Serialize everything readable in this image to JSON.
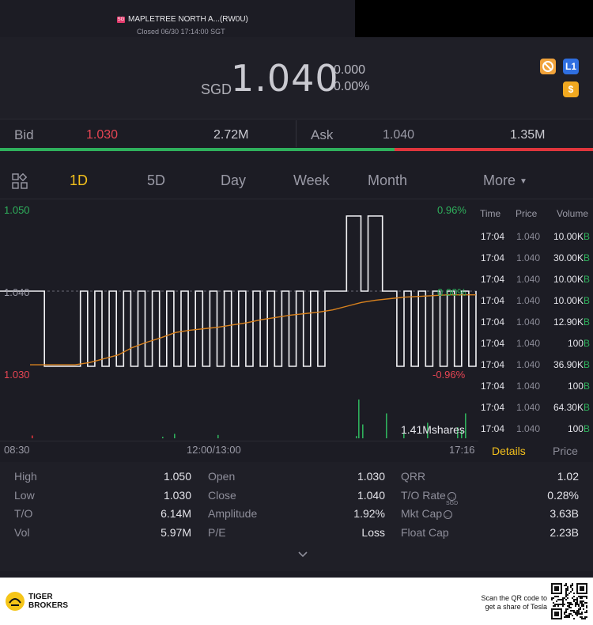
{
  "header": {
    "stock_name": "MAPLETREE NORTH A...(RW0U)",
    "status": "Closed 06/30 17:14:00 SGT"
  },
  "quote": {
    "currency": "SGD",
    "price": "1.040",
    "change": "0.000",
    "change_pct": "0.00%",
    "icons": [
      "no-short-icon",
      "level1-icon",
      "dollar-icon"
    ],
    "icon_level1": "L1",
    "icon_dollar": "$"
  },
  "bidask": {
    "bid_label": "Bid",
    "bid_price": "1.030",
    "bid_size": "2.72M",
    "ask_label": "Ask",
    "ask_price": "1.040",
    "ask_size": "1.35M",
    "bid_share": 0.665
  },
  "tabs": {
    "items": [
      "1D",
      "5D",
      "Day",
      "Week",
      "Month",
      "More"
    ],
    "active": "1D"
  },
  "chart": {
    "y_high": "1.050",
    "y_mid": "1.040",
    "y_low": "1.030",
    "pct_high": "0.96%",
    "pct_mid": "0.00%",
    "pct_low": "-0.96%",
    "volume_label": "1.41Mshares",
    "time_start": "08:30",
    "time_mid": "12:00/13:00",
    "time_end": "17:16"
  },
  "chart_data": {
    "type": "line",
    "title": "",
    "xlabel": "",
    "ylabel": "",
    "ylim": [
      1.03,
      1.05
    ],
    "x_ticks": [
      "08:30",
      "12:00/13:00",
      "17:16"
    ],
    "prev_close": 1.04,
    "series": [
      {
        "values": [
          1.04,
          1.04,
          1.03,
          1.03,
          1.03,
          1.03,
          1.03,
          1.04,
          1.03,
          1.04,
          1.03,
          1.04,
          1.03,
          1.04,
          1.03,
          1.04,
          1.03,
          1.04,
          1.03,
          1.04,
          1.03,
          1.04,
          1.03,
          1.04,
          1.03,
          1.04,
          1.03,
          1.04,
          1.03,
          1.04,
          1.03,
          1.04,
          1.03,
          1.04,
          1.03,
          1.04,
          1.03,
          1.04,
          1.03,
          1.04,
          1.03,
          1.04,
          1.04,
          1.04,
          1.05,
          1.05,
          1.04,
          1.05,
          1.05,
          1.04,
          1.04,
          1.03,
          1.04,
          1.03,
          1.04,
          1.03,
          1.04,
          1.03,
          1.04,
          1.03,
          1.04,
          1.03,
          1.04
        ]
      },
      {
        "values": [
          1.0302,
          1.0305,
          1.031,
          1.0315,
          1.0325,
          1.0332,
          1.0338,
          1.0345,
          1.0348,
          1.035,
          1.0352,
          1.0355,
          1.0358,
          1.0362,
          1.0365,
          1.0368,
          1.037,
          1.0372,
          1.0375,
          1.038,
          1.0385,
          1.0388,
          1.039,
          1.0392,
          1.0393,
          1.0394,
          1.0395,
          1.0395,
          1.0395
        ]
      }
    ],
    "volume": [
      0.05,
      0.02,
      0.08,
      0.06,
      0.04,
      0.7,
      0.25,
      0.45,
      0.1,
      0.28,
      0.2,
      0.15,
      0.45
    ]
  },
  "ticker": {
    "headers": [
      "Time",
      "Price",
      "Volume"
    ],
    "rows": [
      {
        "time": "17:04",
        "price": "1.040",
        "vol": "10.00K",
        "side": "B"
      },
      {
        "time": "17:04",
        "price": "1.040",
        "vol": "30.00K",
        "side": "B"
      },
      {
        "time": "17:04",
        "price": "1.040",
        "vol": "10.00K",
        "side": "B"
      },
      {
        "time": "17:04",
        "price": "1.040",
        "vol": "10.00K",
        "side": "B"
      },
      {
        "time": "17:04",
        "price": "1.040",
        "vol": "12.90K",
        "side": "B"
      },
      {
        "time": "17:04",
        "price": "1.040",
        "vol": "100",
        "side": "B"
      },
      {
        "time": "17:04",
        "price": "1.040",
        "vol": "36.90K",
        "side": "B"
      },
      {
        "time": "17:04",
        "price": "1.040",
        "vol": "100",
        "side": "B"
      },
      {
        "time": "17:04",
        "price": "1.040",
        "vol": "64.30K",
        "side": "B"
      },
      {
        "time": "17:04",
        "price": "1.040",
        "vol": "100",
        "side": "B"
      }
    ],
    "tab_details": "Details",
    "tab_price": "Price"
  },
  "stats": {
    "col1": [
      {
        "label": "High",
        "value": "1.050"
      },
      {
        "label": "Low",
        "value": "1.030"
      },
      {
        "label": "T/O",
        "value": "6.14M"
      },
      {
        "label": "Vol",
        "value": "5.97M"
      }
    ],
    "col2": [
      {
        "label": "Open",
        "value": "1.030"
      },
      {
        "label": "Close",
        "value": "1.040"
      },
      {
        "label": "Amplitude",
        "value": "1.92%"
      },
      {
        "label": "P/E",
        "value": "Loss"
      }
    ],
    "col3": [
      {
        "label": "QRR",
        "value": "1.02"
      },
      {
        "label": "T/O Rate",
        "value": "0.28%"
      },
      {
        "label": "Mkt Cap",
        "value": "3.63B"
      },
      {
        "label": "Float Cap",
        "value": "2.23B"
      }
    ],
    "mkt_cap_unit": "SGD"
  },
  "footer": {
    "brand_line1": "TIGER",
    "brand_line2": "BROKERS",
    "scan_line1": "Scan the QR code to",
    "scan_line2": "get a share of Tesla"
  },
  "colors": {
    "green": "#2fb05c",
    "red": "#e0353c",
    "accent": "#f3c01c",
    "avg_line": "#d9821e"
  }
}
